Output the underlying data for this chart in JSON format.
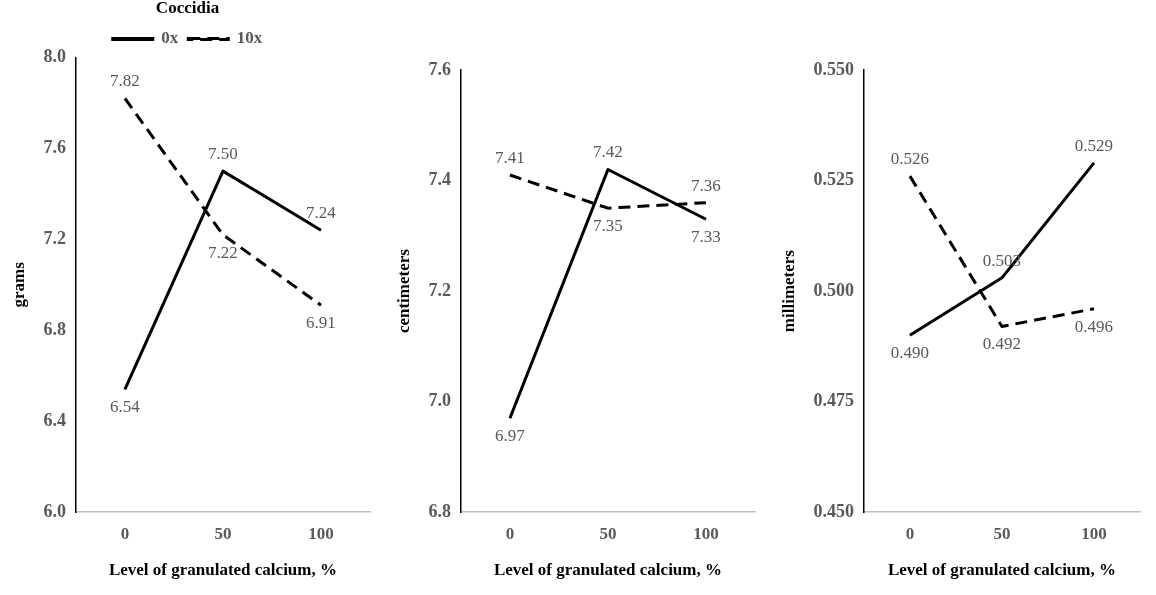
{
  "chart_data": [
    {
      "type": "line",
      "ylabel": "grams",
      "xlabel": "Level of granulated calcium, %",
      "legend_title": "Coccidia",
      "legend": "top",
      "categories": [
        "0",
        "50",
        "100"
      ],
      "ylim": [
        6.0,
        8.0
      ],
      "yticks": [
        {
          "value": 6.0,
          "label": "6.0"
        },
        6.4,
        6.8,
        7.2,
        7.6,
        {
          "value": 8.0,
          "label": "8.0"
        }
      ],
      "grid": false,
      "series": [
        {
          "name": "0x",
          "color": "#000000",
          "line_style": "solid",
          "values": [
            6.54,
            7.5,
            7.24
          ],
          "value_labels": [
            "6.54",
            "7.50",
            "7.24"
          ]
        },
        {
          "name": "10x",
          "color": "#000000",
          "line_style": "dashed",
          "values": [
            7.82,
            7.22,
            6.91
          ],
          "value_labels": [
            "7.82",
            "7.22",
            "6.91"
          ]
        }
      ]
    },
    {
      "type": "line",
      "ylabel": "centimeters",
      "xlabel": "Level of granulated calcium, %",
      "categories": [
        "0",
        "50",
        "100"
      ],
      "ylim": [
        6.8,
        7.6
      ],
      "yticks": [
        6.8,
        {
          "value": 7.0,
          "label": "7.0"
        },
        7.2,
        7.4,
        7.6
      ],
      "grid": false,
      "series": [
        {
          "color": "#000000",
          "line_style": "solid",
          "values": [
            6.97,
            7.42,
            7.33
          ],
          "value_labels": [
            "6.97",
            "7.42",
            "7.33"
          ]
        },
        {
          "color": "#000000",
          "line_style": "dashed",
          "values": [
            7.41,
            7.35,
            7.36
          ],
          "value_labels": [
            "7.41",
            "7.35",
            "7.36"
          ]
        }
      ]
    },
    {
      "type": "line",
      "ylabel": "millimeters",
      "xlabel": "Level of granulated calcium, %",
      "categories": [
        "0",
        "50",
        "100"
      ],
      "ylim": [
        0.45,
        0.55
      ],
      "yticks": [
        {
          "value": 0.45,
          "label": "0.450"
        },
        {
          "value": 0.475,
          "label": "0.475"
        },
        {
          "value": 0.5,
          "label": "0.500"
        },
        {
          "value": 0.525,
          "label": "0.525"
        },
        {
          "value": 0.55,
          "label": "0.550"
        }
      ],
      "grid": false,
      "series": [
        {
          "color": "#000000",
          "line_style": "solid",
          "values": [
            0.49,
            0.503,
            0.529
          ],
          "value_labels": [
            "0.490",
            "0.503",
            "0.529"
          ]
        },
        {
          "color": "#000000",
          "line_style": "dashed",
          "values": [
            0.526,
            0.492,
            0.496
          ],
          "value_labels": [
            "0.526",
            "0.492",
            "0.496"
          ]
        }
      ]
    }
  ]
}
